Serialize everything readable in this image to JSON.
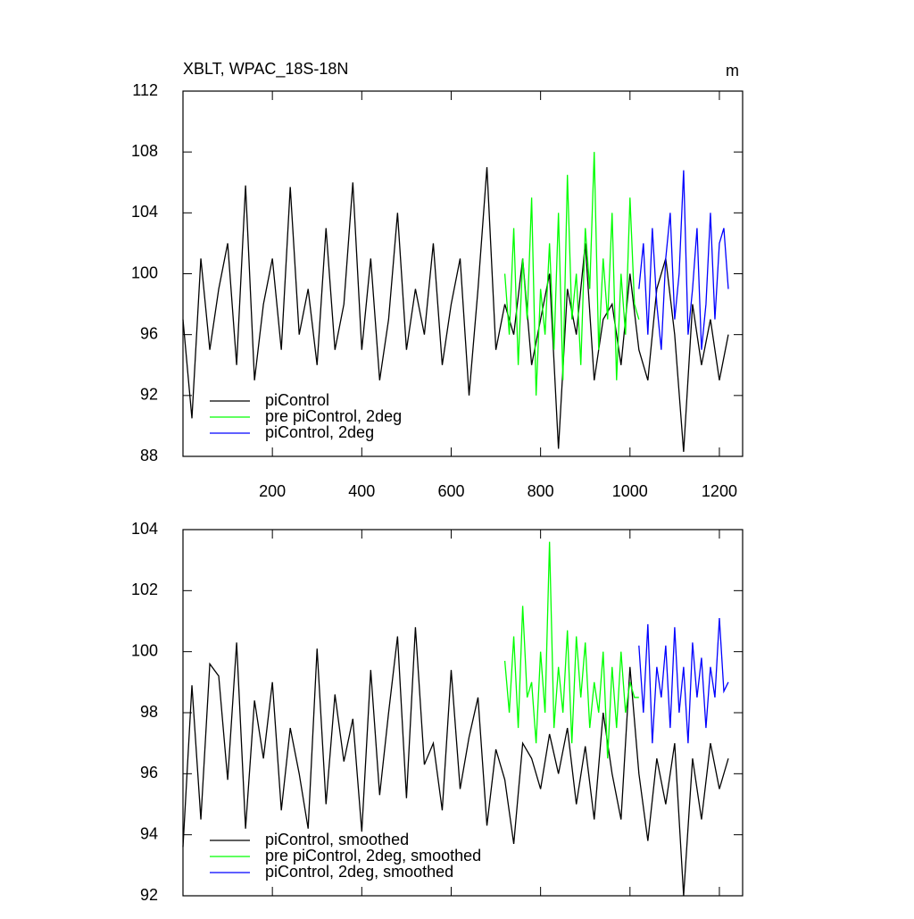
{
  "chart_data": [
    {
      "type": "line",
      "title": "XBLT, WPAC_18S-18N",
      "units": "m",
      "xlim": [
        0,
        1252
      ],
      "xticks": [
        200,
        400,
        600,
        800,
        1000,
        1200
      ],
      "ylim": [
        88,
        112
      ],
      "yticks": [
        88,
        92,
        96,
        100,
        104,
        108,
        112
      ],
      "legend": "lower left",
      "series": [
        {
          "name": "piControl",
          "color": "#000000",
          "x": [
            0,
            20,
            40,
            60,
            80,
            100,
            120,
            140,
            160,
            180,
            200,
            220,
            240,
            260,
            280,
            300,
            320,
            340,
            360,
            380,
            400,
            420,
            440,
            460,
            480,
            500,
            520,
            540,
            560,
            580,
            600,
            620,
            640,
            660,
            680,
            700,
            720,
            740,
            760,
            780,
            800,
            820,
            840,
            860,
            880,
            900,
            920,
            940,
            960,
            980,
            1000,
            1020,
            1040,
            1060,
            1080,
            1100,
            1120,
            1140,
            1160,
            1180,
            1200,
            1220
          ],
          "values": [
            97,
            90.5,
            101,
            95,
            99,
            102,
            94,
            105.8,
            93,
            98,
            101,
            95,
            105.7,
            96,
            99,
            94,
            103,
            95,
            98,
            106,
            95,
            101,
            93,
            97,
            104,
            95,
            99,
            96,
            102,
            94,
            98,
            101,
            92,
            99,
            107,
            95,
            98,
            96,
            101,
            94,
            97,
            100,
            88.5,
            99,
            96,
            102,
            93,
            97,
            98,
            94,
            100,
            95,
            93,
            99,
            101,
            96,
            88.3,
            98,
            94,
            97,
            93,
            96
          ]
        },
        {
          "name": "pre piControl, 2deg",
          "color": "#00ff00",
          "x": [
            720,
            730,
            740,
            750,
            760,
            770,
            780,
            790,
            800,
            810,
            820,
            830,
            840,
            850,
            860,
            870,
            880,
            890,
            900,
            910,
            920,
            930,
            940,
            950,
            960,
            970,
            980,
            990,
            1000,
            1010,
            1020
          ],
          "values": [
            100,
            96,
            103,
            94,
            101,
            97,
            105,
            92,
            99,
            96,
            102,
            95,
            104,
            93,
            106.5,
            97,
            100,
            94,
            103,
            99,
            108,
            95,
            101,
            97,
            104,
            93,
            100,
            96,
            105,
            98,
            97
          ]
        },
        {
          "name": "piControl, 2deg",
          "color": "#0000ff",
          "x": [
            1020,
            1030,
            1040,
            1050,
            1060,
            1070,
            1080,
            1090,
            1100,
            1110,
            1120,
            1130,
            1140,
            1150,
            1160,
            1170,
            1180,
            1190,
            1200,
            1210,
            1220
          ],
          "values": [
            99,
            102,
            96,
            103,
            98,
            95,
            101,
            104,
            97,
            100,
            106.8,
            96,
            99,
            103,
            95,
            98,
            104,
            97,
            102,
            103,
            99
          ]
        }
      ]
    },
    {
      "type": "line",
      "xlim": [
        0,
        1252
      ],
      "xticks": [
        200,
        400,
        600,
        800,
        1000,
        1200
      ],
      "ylim": [
        92,
        104
      ],
      "yticks": [
        92,
        94,
        96,
        98,
        100,
        102,
        104
      ],
      "legend": "lower left",
      "series": [
        {
          "name": "piControl, smoothed",
          "color": "#000000",
          "x": [
            0,
            20,
            40,
            60,
            80,
            100,
            120,
            140,
            160,
            180,
            200,
            220,
            240,
            260,
            280,
            300,
            320,
            340,
            360,
            380,
            400,
            420,
            440,
            460,
            480,
            500,
            520,
            540,
            560,
            580,
            600,
            620,
            640,
            660,
            680,
            700,
            720,
            740,
            760,
            780,
            800,
            820,
            840,
            860,
            880,
            900,
            920,
            940,
            960,
            980,
            1000,
            1020,
            1040,
            1060,
            1080,
            1100,
            1120,
            1140,
            1160,
            1180,
            1200,
            1220
          ],
          "values": [
            93.6,
            98.9,
            94.5,
            99.6,
            99.2,
            95.8,
            100.3,
            94.2,
            98.4,
            96.5,
            99.0,
            94.8,
            97.5,
            96.0,
            94.2,
            100.1,
            95.0,
            98.6,
            96.4,
            97.8,
            94.1,
            99.4,
            95.3,
            98.0,
            100.5,
            95.2,
            100.8,
            96.3,
            97.0,
            94.8,
            99.4,
            95.5,
            97.2,
            98.5,
            94.3,
            96.8,
            95.8,
            93.7,
            97.0,
            96.5,
            95.5,
            97.3,
            96.0,
            97.5,
            95.0,
            96.9,
            94.5,
            98.0,
            96.0,
            94.5,
            99.5,
            96.0,
            93.8,
            96.5,
            95.0,
            97.0,
            92.0,
            96.5,
            94.5,
            97.0,
            95.5,
            96.5
          ]
        },
        {
          "name": "pre piControl, 2deg, smoothed",
          "color": "#00ff00",
          "x": [
            720,
            730,
            740,
            750,
            760,
            770,
            780,
            790,
            800,
            810,
            820,
            830,
            840,
            850,
            860,
            870,
            880,
            890,
            900,
            910,
            920,
            930,
            940,
            950,
            960,
            970,
            980,
            990,
            1000,
            1010,
            1020
          ],
          "values": [
            99.7,
            98.0,
            100.5,
            97.5,
            101.5,
            98.5,
            99.0,
            97.0,
            100.0,
            98.0,
            103.6,
            97.5,
            99.5,
            98.0,
            100.7,
            97.0,
            100.5,
            98.5,
            100.3,
            97.5,
            99.0,
            98.0,
            100.0,
            96.5,
            99.5,
            97.5,
            100.0,
            98.0,
            99.0,
            98.5,
            98.5
          ]
        },
        {
          "name": "piControl, 2deg, smoothed",
          "color": "#0000ff",
          "x": [
            1020,
            1030,
            1040,
            1050,
            1060,
            1070,
            1080,
            1090,
            1100,
            1110,
            1120,
            1130,
            1140,
            1150,
            1160,
            1170,
            1180,
            1190,
            1200,
            1210,
            1220
          ],
          "values": [
            100.2,
            98.0,
            100.9,
            97.0,
            99.5,
            98.5,
            100.2,
            97.5,
            100.8,
            98.0,
            99.5,
            97.0,
            100.3,
            98.5,
            99.8,
            97.5,
            99.5,
            98.5,
            101.1,
            98.7,
            99.0
          ]
        }
      ]
    }
  ]
}
